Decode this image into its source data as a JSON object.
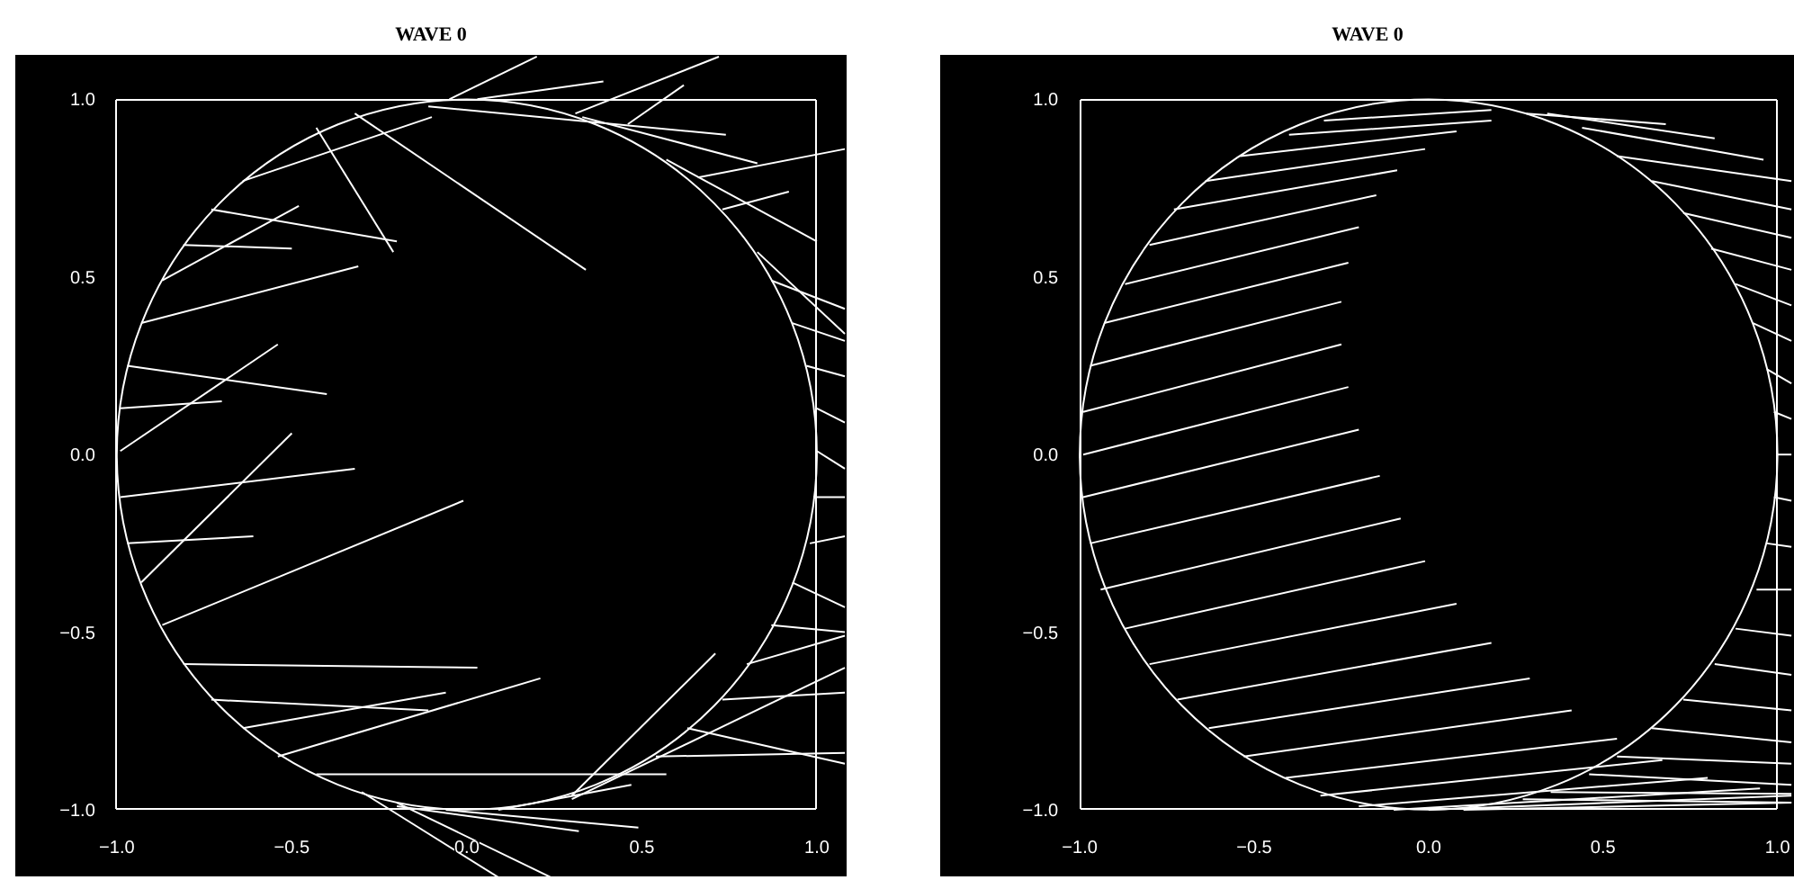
{
  "chart_data": [
    {
      "type": "line",
      "title": "WAVE 0",
      "xlim": [
        -1.29,
        1.085
      ],
      "ylim": [
        -1.19,
        1.125
      ],
      "xticks": [
        {
          "value": -1.0,
          "label": "−1.0"
        },
        {
          "value": -0.5,
          "label": "−0.5"
        },
        {
          "value": 0.0,
          "label": "0.0"
        },
        {
          "value": 0.5,
          "label": "0.5"
        },
        {
          "value": 1.0,
          "label": "1.0"
        }
      ],
      "yticks": [
        {
          "value": -1.0,
          "label": "−1.0"
        },
        {
          "value": -0.5,
          "label": "−0.5"
        },
        {
          "value": 0.0,
          "label": "0.0"
        },
        {
          "value": 0.5,
          "label": "0.5"
        },
        {
          "value": 1.0,
          "label": "1.0"
        }
      ],
      "series": [
        {
          "color": "#ffffff",
          "x": [
            -0.99,
            -0.7
          ],
          "values": [
            0.13,
            0.15
          ]
        },
        {
          "color": "#ffffff",
          "x": [
            -0.99,
            -0.54
          ],
          "values": [
            0.01,
            0.31
          ]
        },
        {
          "color": "#ffffff",
          "x": [
            -0.97,
            -0.4
          ],
          "values": [
            0.25,
            0.17
          ]
        },
        {
          "color": "#ffffff",
          "x": [
            -0.93,
            -0.31
          ],
          "values": [
            0.37,
            0.53
          ]
        },
        {
          "color": "#ffffff",
          "x": [
            -0.87,
            -0.48
          ],
          "values": [
            0.49,
            0.7
          ]
        },
        {
          "color": "#ffffff",
          "x": [
            -0.81,
            -0.5
          ],
          "values": [
            0.59,
            0.58
          ]
        },
        {
          "color": "#ffffff",
          "x": [
            -0.73,
            -0.2
          ],
          "values": [
            0.69,
            0.6
          ]
        },
        {
          "color": "#ffffff",
          "x": [
            -0.64,
            -0.1
          ],
          "values": [
            0.77,
            0.95
          ]
        },
        {
          "color": "#ffffff",
          "x": [
            -0.43,
            -0.21
          ],
          "values": [
            0.92,
            0.57
          ]
        },
        {
          "color": "#ffffff",
          "x": [
            -0.32,
            0.34
          ],
          "values": [
            0.96,
            0.52
          ]
        },
        {
          "color": "#ffffff",
          "x": [
            -0.05,
            0.2
          ],
          "values": [
            1.0,
            1.12
          ]
        },
        {
          "color": "#ffffff",
          "x": [
            0.03,
            0.39
          ],
          "values": [
            1.0,
            1.05
          ]
        },
        {
          "color": "#ffffff",
          "x": [
            0.31,
            0.72
          ],
          "values": [
            0.96,
            1.12
          ]
        },
        {
          "color": "#ffffff",
          "x": [
            -0.11,
            0.74
          ],
          "values": [
            0.98,
            0.9
          ]
        },
        {
          "color": "#ffffff",
          "x": [
            0.46,
            0.62
          ],
          "values": [
            0.93,
            1.04
          ]
        },
        {
          "color": "#ffffff",
          "x": [
            0.33,
            0.83
          ],
          "values": [
            0.95,
            0.82
          ]
        },
        {
          "color": "#ffffff",
          "x": [
            0.66,
            1.08
          ],
          "values": [
            0.78,
            0.86
          ]
        },
        {
          "color": "#ffffff",
          "x": [
            0.57,
            1.0
          ],
          "values": [
            0.83,
            0.6
          ]
        },
        {
          "color": "#ffffff",
          "x": [
            0.73,
            0.92
          ],
          "values": [
            0.69,
            0.74
          ]
        },
        {
          "color": "#ffffff",
          "x": [
            0.87,
            1.08
          ],
          "values": [
            0.49,
            0.41
          ]
        },
        {
          "color": "#ffffff",
          "x": [
            0.83,
            1.08
          ],
          "values": [
            0.57,
            0.34
          ]
        },
        {
          "color": "#ffffff",
          "x": [
            0.93,
            1.08
          ],
          "values": [
            0.37,
            0.32
          ]
        },
        {
          "color": "#ffffff",
          "x": [
            0.97,
            1.08
          ],
          "values": [
            0.25,
            0.22
          ]
        },
        {
          "color": "#ffffff",
          "x": [
            1.0,
            1.08
          ],
          "values": [
            0.13,
            0.09
          ]
        },
        {
          "color": "#ffffff",
          "x": [
            1.0,
            1.08
          ],
          "values": [
            0.01,
            -0.04
          ]
        },
        {
          "color": "#ffffff",
          "x": [
            0.99,
            1.08
          ],
          "values": [
            -0.12,
            -0.12
          ]
        },
        {
          "color": "#ffffff",
          "x": [
            0.98,
            1.08
          ],
          "values": [
            -0.25,
            -0.23
          ]
        },
        {
          "color": "#ffffff",
          "x": [
            0.93,
            1.08
          ],
          "values": [
            -0.36,
            -0.43
          ]
        },
        {
          "color": "#ffffff",
          "x": [
            0.87,
            1.08
          ],
          "values": [
            -0.48,
            -0.5
          ]
        },
        {
          "color": "#ffffff",
          "x": [
            0.8,
            1.08
          ],
          "values": [
            -0.59,
            -0.51
          ]
        },
        {
          "color": "#ffffff",
          "x": [
            0.73,
            1.08
          ],
          "values": [
            -0.69,
            -0.67
          ]
        },
        {
          "color": "#ffffff",
          "x": [
            0.63,
            1.08
          ],
          "values": [
            -0.77,
            -0.87
          ]
        },
        {
          "color": "#ffffff",
          "x": [
            0.54,
            1.08
          ],
          "values": [
            -0.85,
            -0.84
          ]
        },
        {
          "color": "#ffffff",
          "x": [
            0.3,
            1.08
          ],
          "values": [
            -0.97,
            -0.6
          ]
        },
        {
          "color": "#ffffff",
          "x": [
            0.3,
            0.71
          ],
          "values": [
            -0.96,
            -0.56
          ]
        },
        {
          "color": "#ffffff",
          "x": [
            0.09,
            0.47
          ],
          "values": [
            -1.0,
            -0.93
          ]
        },
        {
          "color": "#ffffff",
          "x": [
            -0.2,
            0.32
          ],
          "values": [
            -0.99,
            -1.06
          ]
        },
        {
          "color": "#ffffff",
          "x": [
            -0.06,
            0.49
          ],
          "values": [
            -1.0,
            -1.05
          ]
        },
        {
          "color": "#ffffff",
          "x": [
            -0.3,
            0.09
          ],
          "values": [
            -0.95,
            -1.19
          ]
        },
        {
          "color": "#ffffff",
          "x": [
            -0.2,
            0.24
          ],
          "values": [
            -0.98,
            -1.19
          ]
        },
        {
          "color": "#ffffff",
          "x": [
            -0.99,
            -0.32
          ],
          "values": [
            -0.12,
            -0.04
          ]
        },
        {
          "color": "#ffffff",
          "x": [
            -0.97,
            -0.61
          ],
          "values": [
            -0.25,
            -0.23
          ]
        },
        {
          "color": "#ffffff",
          "x": [
            -0.93,
            -0.5
          ],
          "values": [
            -0.36,
            0.06
          ]
        },
        {
          "color": "#ffffff",
          "x": [
            -0.87,
            -0.01
          ],
          "values": [
            -0.48,
            -0.13
          ]
        },
        {
          "color": "#ffffff",
          "x": [
            -0.81,
            0.03
          ],
          "values": [
            -0.59,
            -0.6
          ]
        },
        {
          "color": "#ffffff",
          "x": [
            -0.73,
            -0.11
          ],
          "values": [
            -0.69,
            -0.72
          ]
        },
        {
          "color": "#ffffff",
          "x": [
            -0.64,
            -0.06
          ],
          "values": [
            -0.77,
            -0.67
          ]
        },
        {
          "color": "#ffffff",
          "x": [
            -0.54,
            0.21
          ],
          "values": [
            -0.85,
            -0.63
          ]
        },
        {
          "color": "#ffffff",
          "x": [
            -0.43,
            0.57
          ],
          "values": [
            -0.9,
            -0.9
          ]
        }
      ]
    },
    {
      "type": "line",
      "title": "WAVE 0",
      "xlim": [
        -1.4,
        1.05
      ],
      "ylim": [
        -1.19,
        1.125
      ],
      "xticks": [
        {
          "value": -1.0,
          "label": "−1.0"
        },
        {
          "value": -0.5,
          "label": "−0.5"
        },
        {
          "value": 0.0,
          "label": "0.0"
        },
        {
          "value": 0.5,
          "label": "0.5"
        },
        {
          "value": 1.0,
          "label": "1.0"
        }
      ],
      "yticks": [
        {
          "value": -1.0,
          "label": "−1.0"
        },
        {
          "value": -0.5,
          "label": "−0.5"
        },
        {
          "value": 0.0,
          "label": "0.0"
        },
        {
          "value": 0.5,
          "label": "0.5"
        },
        {
          "value": 1.0,
          "label": "1.0"
        }
      ],
      "series": [
        {
          "color": "#ffffff",
          "x": [
            -0.3,
            0.18
          ],
          "values": [
            0.94,
            0.97
          ]
        },
        {
          "color": "#ffffff",
          "x": [
            -0.4,
            0.18
          ],
          "values": [
            0.9,
            0.94
          ]
        },
        {
          "color": "#ffffff",
          "x": [
            -0.54,
            0.08
          ],
          "values": [
            0.84,
            0.91
          ]
        },
        {
          "color": "#ffffff",
          "x": [
            -0.64,
            -0.01
          ],
          "values": [
            0.77,
            0.86
          ]
        },
        {
          "color": "#ffffff",
          "x": [
            -0.73,
            -0.09
          ],
          "values": [
            0.69,
            0.8
          ]
        },
        {
          "color": "#ffffff",
          "x": [
            -0.8,
            -0.15
          ],
          "values": [
            0.59,
            0.73
          ]
        },
        {
          "color": "#ffffff",
          "x": [
            -0.87,
            -0.2
          ],
          "values": [
            0.48,
            0.64
          ]
        },
        {
          "color": "#ffffff",
          "x": [
            -0.93,
            -0.23
          ],
          "values": [
            0.37,
            0.54
          ]
        },
        {
          "color": "#ffffff",
          "x": [
            -0.97,
            -0.25
          ],
          "values": [
            0.25,
            0.43
          ]
        },
        {
          "color": "#ffffff",
          "x": [
            -0.99,
            -0.25
          ],
          "values": [
            0.12,
            0.31
          ]
        },
        {
          "color": "#ffffff",
          "x": [
            -0.99,
            -0.23
          ],
          "values": [
            0.0,
            0.19
          ]
        },
        {
          "color": "#ffffff",
          "x": [
            -0.99,
            -0.2
          ],
          "values": [
            -0.12,
            0.07
          ]
        },
        {
          "color": "#ffffff",
          "x": [
            -0.97,
            -0.14
          ],
          "values": [
            -0.25,
            -0.06
          ]
        },
        {
          "color": "#ffffff",
          "x": [
            -0.94,
            -0.08
          ],
          "values": [
            -0.38,
            -0.18
          ]
        },
        {
          "color": "#ffffff",
          "x": [
            -0.87,
            -0.01
          ],
          "values": [
            -0.49,
            -0.3
          ]
        },
        {
          "color": "#ffffff",
          "x": [
            -0.8,
            0.08
          ],
          "values": [
            -0.59,
            -0.42
          ]
        },
        {
          "color": "#ffffff",
          "x": [
            -0.72,
            0.18
          ],
          "values": [
            -0.69,
            -0.53
          ]
        },
        {
          "color": "#ffffff",
          "x": [
            -0.63,
            0.29
          ],
          "values": [
            -0.77,
            -0.63
          ]
        },
        {
          "color": "#ffffff",
          "x": [
            -0.53,
            0.41
          ],
          "values": [
            -0.85,
            -0.72
          ]
        },
        {
          "color": "#ffffff",
          "x": [
            -0.41,
            0.54
          ],
          "values": [
            -0.91,
            -0.8
          ]
        },
        {
          "color": "#ffffff",
          "x": [
            -0.31,
            0.67
          ],
          "values": [
            -0.96,
            -0.86
          ]
        },
        {
          "color": "#ffffff",
          "x": [
            -0.2,
            0.8
          ],
          "values": [
            -0.99,
            -0.91
          ]
        },
        {
          "color": "#ffffff",
          "x": [
            -0.1,
            0.95
          ],
          "values": [
            -1.0,
            -0.94
          ]
        },
        {
          "color": "#ffffff",
          "x": [
            0.0,
            1.04
          ],
          "values": [
            -1.0,
            -0.96
          ]
        },
        {
          "color": "#ffffff",
          "x": [
            0.1,
            1.04
          ],
          "values": [
            -1.0,
            -0.98
          ]
        },
        {
          "color": "#ffffff",
          "x": [
            0.28,
            0.68
          ],
          "values": [
            0.96,
            0.93
          ]
        },
        {
          "color": "#ffffff",
          "x": [
            0.34,
            0.82
          ],
          "values": [
            0.96,
            0.89
          ]
        },
        {
          "color": "#ffffff",
          "x": [
            0.44,
            0.96
          ],
          "values": [
            0.92,
            0.83
          ]
        },
        {
          "color": "#ffffff",
          "x": [
            0.54,
            1.04
          ],
          "values": [
            0.84,
            0.77
          ]
        },
        {
          "color": "#ffffff",
          "x": [
            0.64,
            1.04
          ],
          "values": [
            0.77,
            0.69
          ]
        },
        {
          "color": "#ffffff",
          "x": [
            0.73,
            1.04
          ],
          "values": [
            0.68,
            0.61
          ]
        },
        {
          "color": "#ffffff",
          "x": [
            0.81,
            1.04
          ],
          "values": [
            0.58,
            0.52
          ]
        },
        {
          "color": "#ffffff",
          "x": [
            0.88,
            1.04
          ],
          "values": [
            0.48,
            0.42
          ]
        },
        {
          "color": "#ffffff",
          "x": [
            0.93,
            1.04
          ],
          "values": [
            0.37,
            0.32
          ]
        },
        {
          "color": "#ffffff",
          "x": [
            0.97,
            1.04
          ],
          "values": [
            0.24,
            0.2
          ]
        },
        {
          "color": "#ffffff",
          "x": [
            0.99,
            1.04
          ],
          "values": [
            0.12,
            0.1
          ]
        },
        {
          "color": "#ffffff",
          "x": [
            1.0,
            1.04
          ],
          "values": [
            0.0,
            0.0
          ]
        },
        {
          "color": "#ffffff",
          "x": [
            0.99,
            1.04
          ],
          "values": [
            -0.12,
            -0.13
          ]
        },
        {
          "color": "#ffffff",
          "x": [
            0.97,
            1.04
          ],
          "values": [
            -0.25,
            -0.26
          ]
        },
        {
          "color": "#ffffff",
          "x": [
            0.94,
            1.04
          ],
          "values": [
            -0.38,
            -0.38
          ]
        },
        {
          "color": "#ffffff",
          "x": [
            0.88,
            1.04
          ],
          "values": [
            -0.49,
            -0.51
          ]
        },
        {
          "color": "#ffffff",
          "x": [
            0.82,
            1.04
          ],
          "values": [
            -0.59,
            -0.62
          ]
        },
        {
          "color": "#ffffff",
          "x": [
            0.73,
            1.04
          ],
          "values": [
            -0.69,
            -0.72
          ]
        },
        {
          "color": "#ffffff",
          "x": [
            0.64,
            1.04
          ],
          "values": [
            -0.77,
            -0.81
          ]
        },
        {
          "color": "#ffffff",
          "x": [
            0.54,
            1.04
          ],
          "values": [
            -0.85,
            -0.87
          ]
        },
        {
          "color": "#ffffff",
          "x": [
            0.46,
            1.04
          ],
          "values": [
            -0.9,
            -0.93
          ]
        },
        {
          "color": "#ffffff",
          "x": [
            0.35,
            1.04
          ],
          "values": [
            -0.95,
            -0.955
          ]
        },
        {
          "color": "#ffffff",
          "x": [
            0.27,
            1.04
          ],
          "values": [
            -0.97,
            -0.98
          ]
        }
      ]
    }
  ]
}
